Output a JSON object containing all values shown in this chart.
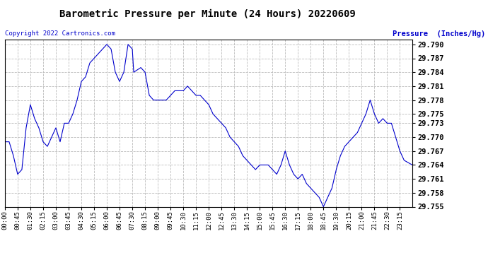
{
  "title": "Barometric Pressure per Minute (24 Hours) 20220609",
  "ylabel": "Pressure  (Inches/Hg)",
  "copyright": "Copyright 2022 Cartronics.com",
  "line_color": "#0000cc",
  "background_color": "#ffffff",
  "grid_color": "#bbbbbb",
  "ylabel_color": "#0000cc",
  "copyright_color": "#0000cc",
  "ylim": [
    29.755,
    29.791
  ],
  "yticks": [
    29.755,
    29.758,
    29.761,
    29.764,
    29.767,
    29.77,
    29.773,
    29.775,
    29.778,
    29.781,
    29.784,
    29.787,
    29.79
  ],
  "xtick_labels": [
    "00:00",
    "00:45",
    "01:30",
    "02:15",
    "03:00",
    "03:45",
    "04:30",
    "05:15",
    "06:00",
    "06:45",
    "07:30",
    "08:15",
    "09:00",
    "09:45",
    "10:30",
    "11:15",
    "12:00",
    "12:45",
    "13:30",
    "14:15",
    "15:00",
    "15:45",
    "16:30",
    "17:15",
    "18:00",
    "18:45",
    "19:30",
    "20:15",
    "21:00",
    "21:45",
    "22:30",
    "23:15"
  ],
  "keypoints": [
    [
      0,
      29.769
    ],
    [
      15,
      29.769
    ],
    [
      30,
      29.766
    ],
    [
      45,
      29.762
    ],
    [
      60,
      29.763
    ],
    [
      75,
      29.772
    ],
    [
      90,
      29.777
    ],
    [
      105,
      29.774
    ],
    [
      120,
      29.772
    ],
    [
      135,
      29.769
    ],
    [
      150,
      29.768
    ],
    [
      165,
      29.77
    ],
    [
      180,
      29.772
    ],
    [
      195,
      29.769
    ],
    [
      210,
      29.773
    ],
    [
      225,
      29.773
    ],
    [
      240,
      29.775
    ],
    [
      255,
      29.778
    ],
    [
      270,
      29.782
    ],
    [
      285,
      29.783
    ],
    [
      300,
      29.786
    ],
    [
      315,
      29.787
    ],
    [
      330,
      29.788
    ],
    [
      345,
      29.789
    ],
    [
      360,
      29.79
    ],
    [
      375,
      29.789
    ],
    [
      390,
      29.784
    ],
    [
      405,
      29.782
    ],
    [
      420,
      29.784
    ],
    [
      435,
      29.79
    ],
    [
      450,
      29.789
    ],
    [
      455,
      29.784
    ],
    [
      480,
      29.785
    ],
    [
      495,
      29.784
    ],
    [
      510,
      29.779
    ],
    [
      525,
      29.778
    ],
    [
      540,
      29.778
    ],
    [
      555,
      29.778
    ],
    [
      570,
      29.778
    ],
    [
      585,
      29.779
    ],
    [
      600,
      29.78
    ],
    [
      615,
      29.78
    ],
    [
      630,
      29.78
    ],
    [
      645,
      29.781
    ],
    [
      660,
      29.78
    ],
    [
      675,
      29.779
    ],
    [
      690,
      29.779
    ],
    [
      720,
      29.777
    ],
    [
      735,
      29.775
    ],
    [
      750,
      29.774
    ],
    [
      765,
      29.773
    ],
    [
      780,
      29.772
    ],
    [
      795,
      29.77
    ],
    [
      810,
      29.769
    ],
    [
      825,
      29.768
    ],
    [
      840,
      29.766
    ],
    [
      855,
      29.765
    ],
    [
      870,
      29.764
    ],
    [
      885,
      29.763
    ],
    [
      900,
      29.764
    ],
    [
      915,
      29.764
    ],
    [
      930,
      29.764
    ],
    [
      945,
      29.763
    ],
    [
      960,
      29.762
    ],
    [
      975,
      29.764
    ],
    [
      990,
      29.767
    ],
    [
      1005,
      29.764
    ],
    [
      1020,
      29.762
    ],
    [
      1035,
      29.761
    ],
    [
      1050,
      29.762
    ],
    [
      1065,
      29.76
    ],
    [
      1080,
      29.759
    ],
    [
      1095,
      29.758
    ],
    [
      1110,
      29.757
    ],
    [
      1125,
      29.755
    ],
    [
      1140,
      29.757
    ],
    [
      1155,
      29.759
    ],
    [
      1170,
      29.763
    ],
    [
      1185,
      29.766
    ],
    [
      1200,
      29.768
    ],
    [
      1215,
      29.769
    ],
    [
      1230,
      29.77
    ],
    [
      1245,
      29.771
    ],
    [
      1260,
      29.773
    ],
    [
      1275,
      29.775
    ],
    [
      1290,
      29.778
    ],
    [
      1305,
      29.775
    ],
    [
      1320,
      29.773
    ],
    [
      1335,
      29.774
    ],
    [
      1350,
      29.773
    ],
    [
      1365,
      29.773
    ],
    [
      1380,
      29.77
    ],
    [
      1395,
      29.767
    ],
    [
      1410,
      29.765
    ],
    [
      1439,
      29.764
    ]
  ]
}
